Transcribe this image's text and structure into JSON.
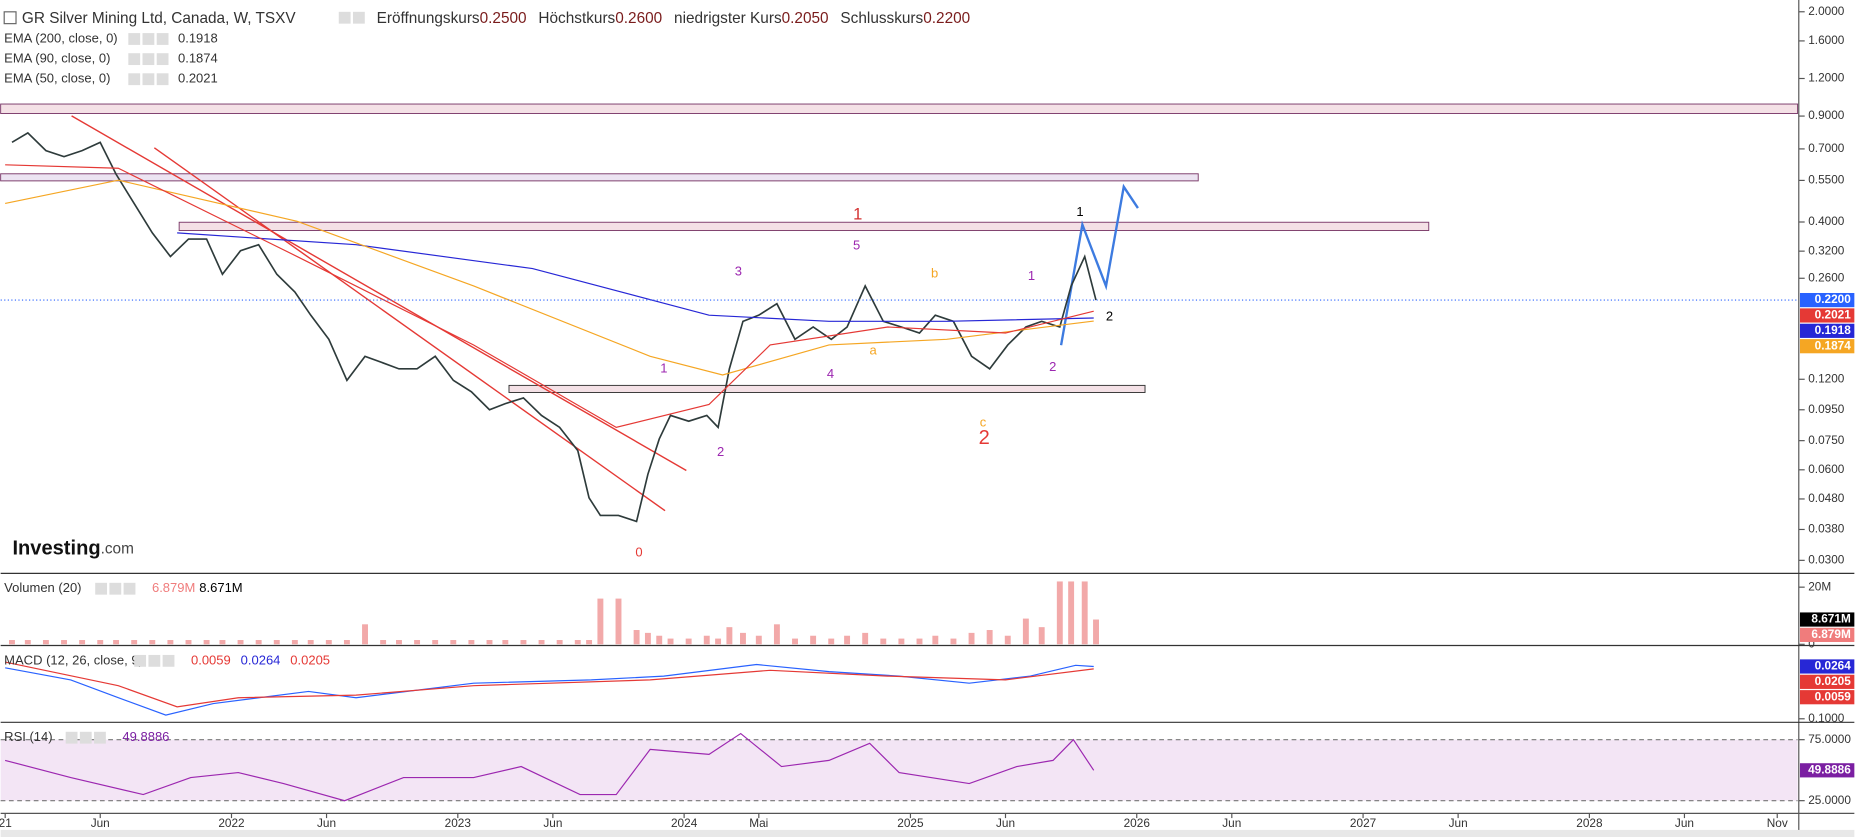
{
  "header": {
    "title": "GR Silver Mining Ltd, Canada, W, TSXV",
    "ohlc": [
      {
        "name": "Eröffnungskurs",
        "value": 0.25,
        "label": "0.2500"
      },
      {
        "name": "Höchstkurs",
        "value": 0.26,
        "label": "0.2600"
      },
      {
        "name": "niedrigster Kurs",
        "value": 0.205,
        "label": "0.2050"
      },
      {
        "name": "Schlusskurs",
        "value": 0.22,
        "label": "0.2200"
      }
    ]
  },
  "logo": {
    "text": "Investing",
    "suffix": ".com"
  },
  "chart_data": [
    {
      "type": "line",
      "log_scale": true,
      "ylim": [
        0.0274,
        2.13
      ],
      "yticks": [
        {
          "value": 2,
          "label": "2.0000"
        },
        {
          "value": 1.6,
          "label": "1.6000"
        },
        {
          "value": 1.2,
          "label": "1.2000"
        },
        {
          "value": 0.9,
          "label": "0.9000"
        },
        {
          "value": 0.7,
          "label": "0.7000"
        },
        {
          "value": 0.55,
          "label": "0.5500"
        },
        {
          "value": 0.4,
          "label": "0.4000"
        },
        {
          "value": 0.32,
          "label": "0.3200"
        },
        {
          "value": 0.26,
          "label": "0.2600"
        },
        {
          "value": 0.12,
          "label": "0.1200"
        },
        {
          "value": 0.095,
          "label": "0.0950"
        },
        {
          "value": 0.075,
          "label": "0.0750"
        },
        {
          "value": 0.06,
          "label": "0.0600"
        },
        {
          "value": 0.048,
          "label": "0.0480"
        },
        {
          "value": 0.038,
          "label": "0.0380"
        },
        {
          "value": 0.03,
          "label": "0.0300"
        }
      ],
      "xlim": [
        2020.98,
        2028.92
      ],
      "xticks": [
        {
          "value": 2021,
          "label": "21"
        },
        {
          "value": 2021.42,
          "label": "Jun"
        },
        2022,
        {
          "value": 2022.42,
          "label": "Jun"
        },
        2023,
        {
          "value": 2023.42,
          "label": "Jun"
        },
        2024,
        {
          "value": 2024.33,
          "label": "Mai"
        },
        2025,
        {
          "value": 2025.42,
          "label": "Jun"
        },
        2026,
        {
          "value": 2026.42,
          "label": "Jun"
        },
        2027,
        {
          "value": 2027.42,
          "label": "Jun"
        },
        2028,
        {
          "value": 2028.42,
          "label": "Jun"
        },
        {
          "value": 2028.83,
          "label": "Nov"
        }
      ],
      "series": [
        {
          "color": "#2e3b3b",
          "x": [
            2021.03,
            2021.1,
            2021.18,
            2021.26,
            2021.34,
            2021.42,
            2021.49,
            2021.57,
            2021.65,
            2021.73,
            2021.81,
            2021.89,
            2021.96,
            2022.04,
            2022.12,
            2022.2,
            2022.28,
            2022.35,
            2022.43,
            2022.51,
            2022.59,
            2022.67,
            2022.74,
            2022.82,
            2022.9,
            2022.98,
            2023.06,
            2023.14,
            2023.21,
            2023.29,
            2023.37,
            2023.45,
            2023.53,
            2023.58,
            2023.63,
            2023.71,
            2023.79,
            2023.84,
            2023.89,
            2023.94,
            2024.02,
            2024.1,
            2024.15,
            2024.2,
            2024.26,
            2024.33,
            2024.41,
            2024.49,
            2024.57,
            2024.65,
            2024.72,
            2024.8,
            2024.88,
            2024.96,
            2025.04,
            2025.11,
            2025.19,
            2025.27,
            2025.35,
            2025.43,
            2025.51,
            2025.58,
            2025.66,
            2025.71,
            2025.77,
            2025.82
          ],
          "values": [
            0.736,
            0.791,
            0.691,
            0.66,
            0.691,
            0.736,
            0.577,
            0.461,
            0.368,
            0.307,
            0.351,
            0.351,
            0.268,
            0.321,
            0.336,
            0.268,
            0.234,
            0.196,
            0.163,
            0.119,
            0.143,
            0.136,
            0.13,
            0.13,
            0.143,
            0.119,
            0.109,
            0.095,
            0.0996,
            0.104,
            0.091,
            0.083,
            0.0695,
            0.0484,
            0.0423,
            0.0423,
            0.0404,
            0.058,
            0.076,
            0.091,
            0.087,
            0.091,
            0.083,
            0.13,
            0.187,
            0.196,
            0.214,
            0.163,
            0.179,
            0.163,
            0.179,
            0.245,
            0.187,
            0.179,
            0.171,
            0.196,
            0.187,
            0.143,
            0.13,
            0.156,
            0.179,
            0.187,
            0.179,
            0.245,
            0.307,
            0.22
          ]
        },
        {
          "name": "EMA (200, close, 0)",
          "color": "#2727d6",
          "last_value": 0.1918,
          "x": [
            2021.76,
            2022.55,
            2023.33,
            2024.11,
            2024.64,
            2025.16,
            2025.81
          ],
          "values": [
            0.368,
            0.336,
            0.28,
            0.196,
            0.187,
            0.187,
            0.1918
          ]
        },
        {
          "name": "EMA (90, close, 0)",
          "color": "#f5a623",
          "last_value": 0.1874,
          "x": [
            2021.0,
            2021.5,
            2022.29,
            2023.07,
            2023.85,
            2024.17,
            2024.64,
            2025.16,
            2025.81
          ],
          "values": [
            0.461,
            0.551,
            0.402,
            0.245,
            0.143,
            0.124,
            0.156,
            0.163,
            0.1874
          ]
        },
        {
          "name": "EMA (50, close, 0)",
          "color": "#e53935",
          "last_value": 0.2021,
          "x": [
            2021.0,
            2021.5,
            2022.29,
            2023.07,
            2023.7,
            2024.11,
            2024.38,
            2024.9,
            2025.42,
            2025.81
          ],
          "values": [
            0.62,
            0.604,
            0.307,
            0.156,
            0.083,
            0.099,
            0.156,
            0.179,
            0.171,
            0.2021
          ]
        }
      ],
      "annotations": [
        {
          "text": "1",
          "color": "#d32f2f"
        },
        {
          "text": "1",
          "color": "#000000"
        },
        {
          "text": "2",
          "color": "#000000"
        },
        {
          "text": "5",
          "color": "#9c27b0"
        },
        {
          "text": "3",
          "color": "#9c27b0"
        },
        {
          "text": "b",
          "color": "#f5a623"
        },
        {
          "text": "1",
          "color": "#9c27b0"
        },
        {
          "text": "a",
          "color": "#f5a623"
        },
        {
          "text": "4",
          "color": "#9c27b0"
        },
        {
          "text": "2",
          "color": "#9c27b0"
        },
        {
          "text": "1",
          "color": "#9c27b0"
        },
        {
          "text": "2",
          "color": "#9c27b0"
        },
        {
          "text": "c",
          "color": "#f5a623"
        },
        {
          "text": "2",
          "color": "#e53935"
        },
        {
          "text": "0",
          "color": "#e53935"
        }
      ]
    },
    {
      "type": "bar",
      "title": "Volumen (20)",
      "ylim": [
        0,
        24
      ],
      "yticks": [
        {
          "value": 20,
          "label": "20M"
        },
        0
      ],
      "readouts": [
        {
          "value": 6.879,
          "label": "6.879M",
          "color": "#f07c7c"
        },
        {
          "value": 8.671,
          "label": "8.671M",
          "color": "#000000"
        }
      ],
      "series": [
        {
          "color": "#f2a9a9",
          "x": [
            2021.03,
            2021.1,
            2021.18,
            2021.26,
            2021.34,
            2021.42,
            2021.49,
            2021.57,
            2021.65,
            2021.73,
            2021.81,
            2021.89,
            2021.96,
            2022.04,
            2022.12,
            2022.2,
            2022.28,
            2022.35,
            2022.43,
            2022.51,
            2022.59,
            2022.67,
            2022.74,
            2022.82,
            2022.9,
            2022.98,
            2023.06,
            2023.14,
            2023.21,
            2023.29,
            2023.37,
            2023.45,
            2023.53,
            2023.58,
            2023.63,
            2023.71,
            2023.79,
            2023.84,
            2023.89,
            2023.94,
            2024.02,
            2024.1,
            2024.15,
            2024.2,
            2024.26,
            2024.33,
            2024.41,
            2024.49,
            2024.57,
            2024.65,
            2024.72,
            2024.8,
            2024.88,
            2024.96,
            2025.04,
            2025.11,
            2025.19,
            2025.27,
            2025.35,
            2025.43,
            2025.51,
            2025.58,
            2025.66,
            2025.71,
            2025.77,
            2025.82
          ],
          "values": [
            1.5,
            1.5,
            1.5,
            1.5,
            1.5,
            1.5,
            1.5,
            1.5,
            1.5,
            1.5,
            1.5,
            1.5,
            1.5,
            1.5,
            1.5,
            1.5,
            1.5,
            1.5,
            1.5,
            1.5,
            7,
            1.5,
            1.5,
            1.5,
            1.5,
            1.5,
            1.5,
            1.5,
            1.5,
            1.5,
            1.5,
            1.5,
            1.5,
            1.5,
            16,
            16,
            5,
            4,
            3,
            2,
            2,
            3,
            2,
            6,
            4,
            3,
            7,
            2,
            3,
            2,
            3,
            4,
            2,
            2,
            2,
            3,
            2,
            4,
            5,
            3,
            9,
            6,
            22,
            22,
            22,
            8.671
          ]
        }
      ]
    },
    {
      "type": "line",
      "title": "MACD (12, 26, close, 9)",
      "ylim": [
        -0.1057,
        0.0714
      ],
      "yticks": [
        {
          "value": -0.1,
          "label": "0.1000"
        }
      ],
      "readouts": [
        0.0059,
        0.0264,
        0.0205
      ],
      "readout_colors": [
        "#e53935",
        "#2727d6",
        "#e53935"
      ],
      "series": [
        {
          "color": "#2962ff",
          "x": [
            2021.0,
            2021.29,
            2021.5,
            2021.71,
            2021.92,
            2022.34,
            2022.55,
            2023.07,
            2023.59,
            2023.91,
            2024.32,
            2024.64,
            2024.95,
            2025.26,
            2025.53,
            2025.73,
            2025.81
          ],
          "values": [
            0.023,
            -0.006,
            -0.049,
            -0.091,
            -0.063,
            -0.034,
            -0.049,
            -0.014,
            -0.006,
            0.003,
            0.031,
            0.014,
            0.003,
            -0.014,
            0.003,
            0.029,
            0.0264
          ]
        },
        {
          "color": "#e53935",
          "x": [
            2021.0,
            2021.5,
            2021.76,
            2022.03,
            2022.55,
            2023.07,
            2023.85,
            2024.38,
            2024.9,
            2025.42,
            2025.81
          ],
          "values": [
            0.037,
            -0.02,
            -0.071,
            -0.049,
            -0.043,
            -0.02,
            -0.006,
            0.017,
            0.003,
            -0.006,
            0.0205
          ]
        }
      ]
    },
    {
      "type": "line",
      "title": "RSI (14)",
      "ylim": [
        14.6,
        87.3
      ],
      "yticks": [
        {
          "value": 75,
          "label": "75.0000"
        },
        {
          "value": 25,
          "label": "25.0000"
        }
      ],
      "readouts": [
        49.8886
      ],
      "readout_colors": [
        "#7b1fa2"
      ],
      "series": [
        {
          "color": "#9c27b0",
          "x": [
            2021.0,
            2021.29,
            2021.61,
            2021.82,
            2022.03,
            2022.23,
            2022.5,
            2022.76,
            2023.07,
            2023.28,
            2023.54,
            2023.7,
            2023.85,
            2024.11,
            2024.25,
            2024.43,
            2024.64,
            2024.82,
            2024.95,
            2025.26,
            2025.47,
            2025.63,
            2025.72,
            2025.81
          ],
          "values": [
            58,
            44,
            30,
            44,
            48,
            39,
            25,
            44,
            44,
            53,
            30,
            30,
            67,
            63,
            80,
            53,
            58,
            72,
            48,
            39,
            53,
            58,
            75,
            49.8886
          ]
        }
      ]
    }
  ]
}
